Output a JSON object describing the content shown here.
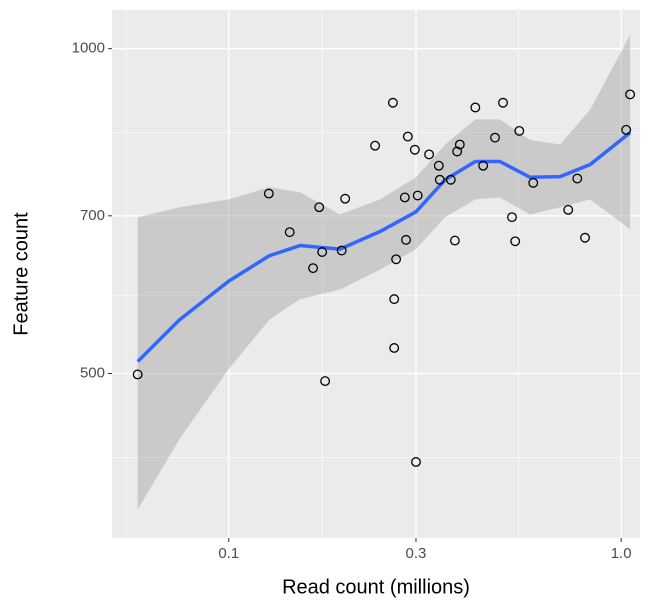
{
  "chart_data": {
    "type": "scatter",
    "x_label": "Read count (millions)",
    "y_label": "Feature count",
    "x": [
      0.0586,
      0.1265,
      0.143,
      0.164,
      0.17,
      0.173,
      0.176,
      0.194,
      0.198,
      0.236,
      0.262,
      0.264,
      0.264,
      0.267,
      0.281,
      0.283,
      0.286,
      0.298,
      0.3,
      0.303,
      0.324,
      0.343,
      0.345,
      0.368,
      0.377,
      0.382,
      0.388,
      0.425,
      0.445,
      0.477,
      0.5,
      0.527,
      0.537,
      0.55,
      0.597,
      0.733,
      0.773,
      0.809,
      1.03,
      1.054
    ],
    "y": [
      499,
      734,
      676,
      626,
      713,
      648,
      492,
      650,
      726,
      813,
      891,
      586,
      528,
      638,
      728,
      665,
      829,
      806,
      414,
      731,
      798,
      779,
      756,
      756,
      664,
      803,
      815,
      882,
      779,
      827,
      891,
      698,
      663,
      839,
      751,
      709,
      758,
      668,
      841,
      907
    ],
    "point_color": "#000000",
    "smooth": {
      "color": "#3366ff",
      "band_color": "#999999",
      "x": [
        0.0586,
        0.075,
        0.1,
        0.127,
        0.152,
        0.192,
        0.243,
        0.3,
        0.356,
        0.425,
        0.491,
        0.586,
        0.699,
        0.834,
        1.054
      ],
      "fit": [
        513,
        561,
        609,
        643,
        657,
        652,
        677,
        706,
        756,
        786,
        786,
        760,
        761,
        781,
        836
      ],
      "lower": [
        374,
        435,
        505,
        561,
        586,
        598,
        624,
        652,
        698,
        725,
        728,
        702,
        713,
        725,
        680
      ],
      "upper": [
        698,
        713,
        725,
        744,
        736,
        702,
        725,
        760,
        815,
        860,
        860,
        823,
        815,
        878,
        1030
      ]
    },
    "log_x": true,
    "log_y": true,
    "xlim": [
      0.0504,
      1.117
    ],
    "ylim": [
      352,
      1086
    ],
    "xticks": [
      {
        "value": 0.1,
        "label": "0.1"
      },
      0.3,
      {
        "value": 1.0,
        "label": "1.0"
      }
    ],
    "yticks": [
      500,
      700,
      1000
    ],
    "x_minor_grid": [
      0.0548,
      0.173,
      0.548
    ],
    "y_minor_grid": [
      418,
      591,
      836
    ],
    "grid": true
  }
}
